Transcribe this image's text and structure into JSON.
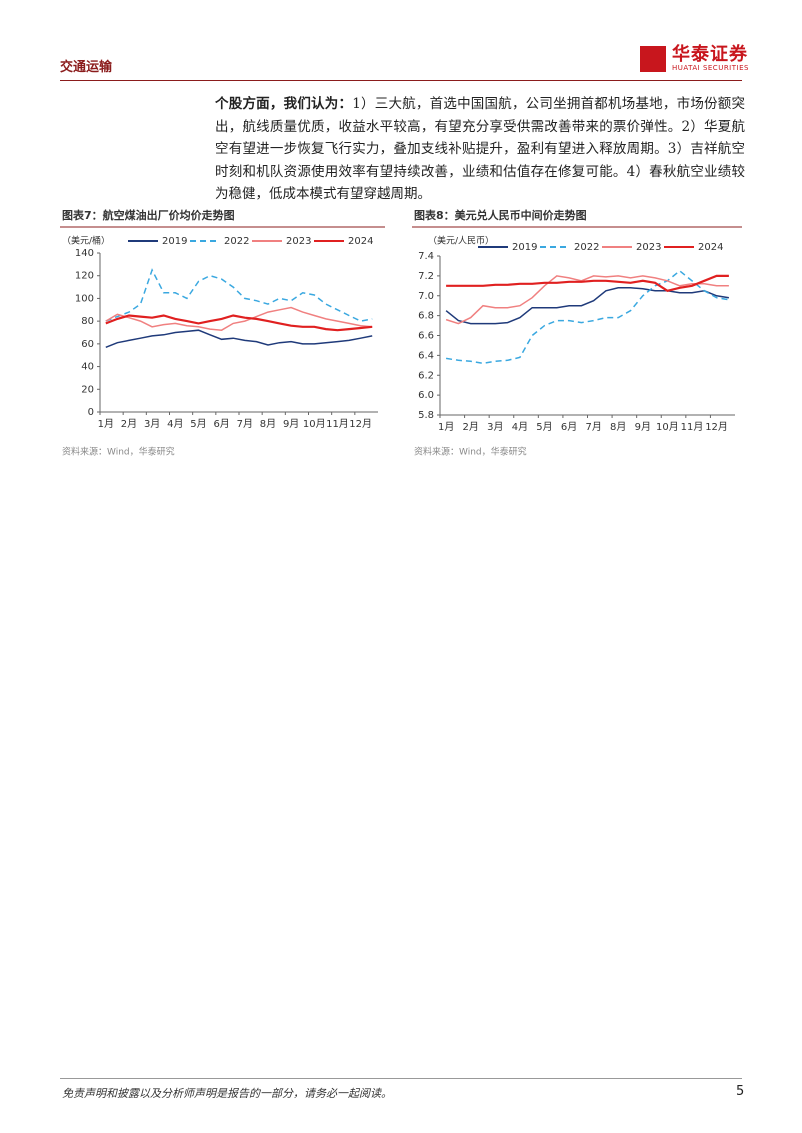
{
  "header": {
    "section": "交通运输",
    "logo": "华泰证券",
    "logo_en": "HUATAI SECURITIES"
  },
  "body": {
    "lead": "个股方面，我们认为：",
    "text": "1）三大航，首选中国国航，公司坐拥首都机场基地，市场份额突出，航线质量优质，收益水平较高，有望充分享受供需改善带来的票价弹性。2）华夏航空有望进一步恢复飞行实力，叠加支线补贴提升，盈利有望进入释放周期。3）吉祥航空时刻和机队资源使用效率有望持续改善，业绩和估值存在修复可能。4）春秋航空业绩较为稳健，低成本模式有望穿越周期。"
  },
  "chart_data": [
    {
      "type": "line",
      "title": "图表7：航空煤油出厂价均价走势图",
      "y_label": "（美元/桶）",
      "source": "资料来源：Wind，华泰研究",
      "categories": [
        "1月",
        null,
        "2月",
        null,
        "3月",
        null,
        "4月",
        null,
        "5月",
        null,
        "6月",
        null,
        "7月",
        null,
        "8月",
        null,
        "9月",
        null,
        "10月",
        null,
        "11月",
        null,
        "12月",
        null
      ],
      "ylim": [
        0,
        140
      ],
      "yticks": [
        0,
        20,
        40,
        60,
        80,
        100,
        120,
        140
      ],
      "grid": false,
      "series": [
        {
          "name": "2019",
          "color": "#1f3a7a",
          "dash": false,
          "values": [
            57,
            61,
            63,
            65,
            67,
            68,
            70,
            71,
            72,
            68,
            64,
            65,
            63,
            62,
            59,
            61,
            62,
            60,
            60,
            61,
            62,
            63,
            65,
            67
          ]
        },
        {
          "name": "2022",
          "color": "#3aa8e0",
          "dash": true,
          "values": [
            80,
            84,
            88,
            95,
            125,
            105,
            105,
            100,
            115,
            120,
            117,
            110,
            100,
            98,
            95,
            100,
            98,
            105,
            103,
            95,
            90,
            85,
            80,
            82
          ]
        },
        {
          "name": "2023",
          "color": "#f08080",
          "dash": false,
          "values": [
            80,
            86,
            83,
            80,
            75,
            77,
            78,
            76,
            75,
            73,
            72,
            78,
            80,
            84,
            88,
            90,
            92,
            88,
            85,
            82,
            80,
            78,
            76,
            75
          ]
        },
        {
          "name": "2024",
          "color": "#e02020",
          "dash": false,
          "values": [
            78,
            82,
            85,
            84,
            83,
            85,
            82,
            80,
            78,
            80,
            82,
            85,
            83,
            82,
            80,
            78,
            76,
            75,
            75,
            73,
            72,
            73,
            74,
            75
          ]
        }
      ]
    },
    {
      "type": "line",
      "title": "图表8：美元兑人民币中间价走势图",
      "y_label": "（美元/人民币）",
      "source": "资料来源：Wind，华泰研究",
      "categories": [
        "1月",
        null,
        "2月",
        null,
        "3月",
        null,
        "4月",
        null,
        "5月",
        null,
        "6月",
        null,
        "7月",
        null,
        "8月",
        null,
        "9月",
        null,
        "10月",
        null,
        "11月",
        null,
        "12月",
        null
      ],
      "ylim": [
        5.8,
        7.4
      ],
      "yticks": [
        5.8,
        {
          "value": 6,
          "label": "6.0"
        },
        6.2,
        6.4,
        6.6,
        6.8,
        {
          "value": 7,
          "label": "7.0"
        },
        7.2,
        7.4
      ],
      "grid": false,
      "series": [
        {
          "name": "2019",
          "color": "#1f3a7a",
          "dash": false,
          "values": [
            6.85,
            6.75,
            6.72,
            6.72,
            6.72,
            6.73,
            6.78,
            6.88,
            6.88,
            6.88,
            6.9,
            6.9,
            6.95,
            7.05,
            7.08,
            7.08,
            7.07,
            7.05,
            7.05,
            7.03,
            7.03,
            7.05,
            7.0,
            6.98
          ]
        },
        {
          "name": "2022",
          "color": "#3aa8e0",
          "dash": true,
          "values": [
            6.37,
            6.35,
            6.34,
            6.32,
            6.34,
            6.35,
            6.38,
            6.6,
            6.7,
            6.75,
            6.75,
            6.73,
            6.75,
            6.78,
            6.78,
            6.85,
            7.0,
            7.1,
            7.15,
            7.25,
            7.15,
            7.05,
            6.98,
            6.96
          ]
        },
        {
          "name": "2023",
          "color": "#f08080",
          "dash": false,
          "values": [
            6.76,
            6.72,
            6.78,
            6.9,
            6.88,
            6.88,
            6.9,
            6.98,
            7.1,
            7.2,
            7.18,
            7.15,
            7.2,
            7.19,
            7.2,
            7.18,
            7.2,
            7.18,
            7.15,
            7.1,
            7.12,
            7.12,
            7.1,
            7.1
          ]
        },
        {
          "name": "2024",
          "color": "#e02020",
          "dash": false,
          "values": [
            7.1,
            7.1,
            7.1,
            7.1,
            7.11,
            7.11,
            7.12,
            7.12,
            7.13,
            7.13,
            7.14,
            7.14,
            7.15,
            7.15,
            7.14,
            7.13,
            7.15,
            7.13,
            7.05,
            7.08,
            7.1,
            7.15,
            7.2,
            7.2
          ]
        }
      ]
    }
  ],
  "footer": {
    "disclaimer": "免责声明和披露以及分析师声明是报告的一部分，请务必一起阅读。",
    "page": 5
  }
}
